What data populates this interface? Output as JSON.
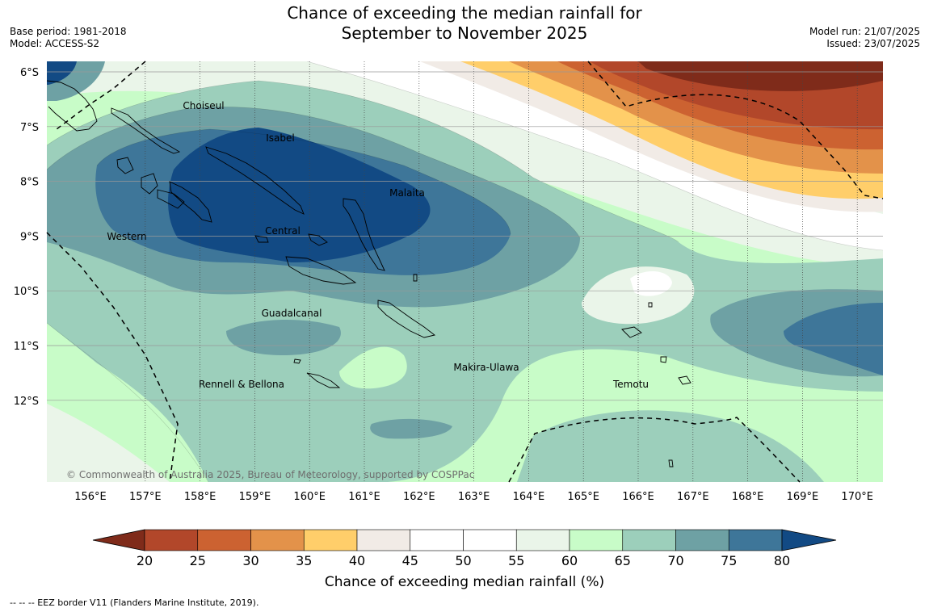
{
  "header": {
    "title_line1": "Chance of exceeding the median rainfall for",
    "title_line2": "September to November 2025",
    "base_period": "Base period: 1981-2018",
    "model": "Model: ACCESS-S2",
    "model_run": "Model run: 21/07/2025",
    "issued": "Issued: 23/07/2025"
  },
  "map": {
    "lon_labels": [
      "156°E",
      "157°E",
      "158°E",
      "159°E",
      "160°E",
      "161°E",
      "162°E",
      "163°E",
      "164°E",
      "165°E",
      "166°E",
      "167°E",
      "168°E",
      "169°E",
      "170°E"
    ],
    "lat_labels": [
      "6°S",
      "7°S",
      "8°S",
      "9°S",
      "10°S",
      "11°S",
      "12°S"
    ],
    "regions": [
      "Choiseul",
      "Isabel",
      "Malaita",
      "Western",
      "Central",
      "Guadalcanal",
      "Makira-Ulawa",
      "Temotu",
      "Rennell & Bellona"
    ],
    "copyright": "© Commonwealth of Australia 2025, Bureau of Meteorology, supported by COSPPac"
  },
  "colorbar": {
    "ticks": [
      "20",
      "25",
      "30",
      "35",
      "40",
      "45",
      "50",
      "55",
      "60",
      "65",
      "70",
      "75",
      "80"
    ],
    "colors": [
      "#7f2b1a",
      "#b2472a",
      "#cc6231",
      "#e3924a",
      "#ffce6a",
      "#f1ebe6",
      "#ffffff",
      "#ffffff",
      "#eaf5e9",
      "#c8fcc8",
      "#9ccfbb",
      "#6ea1a4",
      "#3e7699",
      "#124a84"
    ],
    "title": "Chance of exceeding median rainfall (%)"
  },
  "footnote": "--  --  -- EEZ border V11 (Flanders Marine Institute, 2019)."
}
